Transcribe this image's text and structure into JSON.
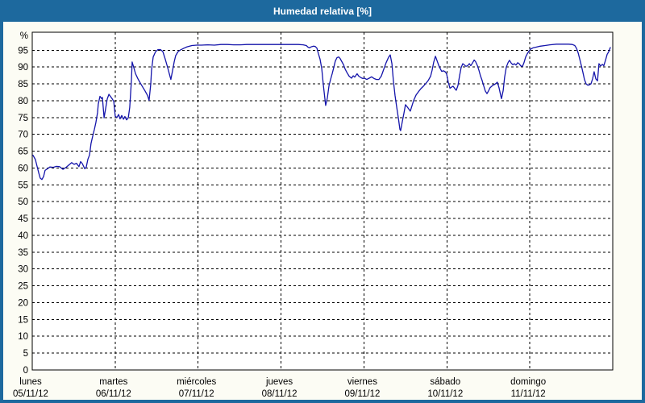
{
  "window": {
    "title": "Humedad relativa [%]",
    "title_bar_color": "#1d699e",
    "content_background": "#fcfcf4",
    "plot_background": "#ffffff"
  },
  "chart_data": {
    "type": "line",
    "title": "Humedad relativa [%]",
    "ylabel": "%",
    "ylim": [
      0,
      100
    ],
    "y_tick_step": 5,
    "y_tick_min": 0,
    "y_tick_max": 95,
    "grid": true,
    "grid_style": "dashed",
    "legend_position": "none",
    "line_color": "#1414aa",
    "x_unit": "hours since lunes 05/11/12 00:00",
    "x_range_hours": [
      0,
      168
    ],
    "x_axis_days": [
      {
        "name": "lunes",
        "date": "05/11/12"
      },
      {
        "name": "martes",
        "date": "06/11/12"
      },
      {
        "name": "miércoles",
        "date": "07/11/12"
      },
      {
        "name": "jueves",
        "date": "08/11/12"
      },
      {
        "name": "viernes",
        "date": "09/11/12"
      },
      {
        "name": "sábado",
        "date": "10/11/12"
      },
      {
        "name": "domingo",
        "date": "11/11/12"
      }
    ],
    "series": [
      {
        "name": "Humedad relativa [%]",
        "points": [
          [
            0.2,
            63.8
          ],
          [
            0.9,
            62.5
          ],
          [
            1.4,
            60.5
          ],
          [
            1.9,
            58.5
          ],
          [
            2.3,
            57.0
          ],
          [
            2.8,
            56.6
          ],
          [
            3.3,
            57.5
          ],
          [
            3.7,
            59.3
          ],
          [
            4.4,
            59.8
          ],
          [
            5.1,
            60.3
          ],
          [
            6.1,
            60.2
          ],
          [
            7.0,
            60.5
          ],
          [
            7.9,
            60.4
          ],
          [
            8.9,
            59.6
          ],
          [
            9.8,
            60.2
          ],
          [
            10.7,
            61.0
          ],
          [
            11.4,
            61.6
          ],
          [
            12.1,
            61.1
          ],
          [
            12.8,
            61.4
          ],
          [
            13.5,
            60.4
          ],
          [
            14.0,
            61.9
          ],
          [
            14.5,
            61.3
          ],
          [
            15.2,
            59.8
          ],
          [
            15.6,
            60.2
          ],
          [
            16.1,
            62.6
          ],
          [
            16.6,
            63.9
          ],
          [
            17.0,
            67.3
          ],
          [
            17.5,
            69.5
          ],
          [
            18.0,
            71.5
          ],
          [
            18.4,
            73.5
          ],
          [
            18.9,
            76.5
          ],
          [
            19.1,
            79.0
          ],
          [
            19.6,
            81.3
          ],
          [
            20.1,
            80.6
          ],
          [
            20.3,
            81.0
          ],
          [
            20.8,
            74.9
          ],
          [
            21.2,
            77.5
          ],
          [
            21.7,
            80.5
          ],
          [
            22.2,
            81.9
          ],
          [
            22.6,
            81.3
          ],
          [
            23.1,
            80.6
          ],
          [
            23.6,
            79.8
          ],
          [
            24.0,
            75.4
          ],
          [
            24.5,
            75.0
          ],
          [
            25.0,
            75.9
          ],
          [
            25.4,
            74.6
          ],
          [
            25.9,
            75.6
          ],
          [
            26.4,
            74.5
          ],
          [
            26.8,
            75.3
          ],
          [
            27.3,
            74.3
          ],
          [
            27.8,
            74.9
          ],
          [
            28.2,
            78.0
          ],
          [
            28.7,
            86.0
          ],
          [
            28.9,
            91.5
          ],
          [
            29.4,
            89.8
          ],
          [
            29.9,
            88.0
          ],
          [
            30.6,
            86.5
          ],
          [
            31.3,
            85.2
          ],
          [
            32.0,
            84.0
          ],
          [
            32.7,
            82.8
          ],
          [
            33.4,
            81.5
          ],
          [
            33.8,
            80.1
          ],
          [
            34.3,
            85.0
          ],
          [
            34.5,
            89.0
          ],
          [
            35.0,
            93.0
          ],
          [
            35.7,
            94.6
          ],
          [
            36.4,
            95.2
          ],
          [
            37.1,
            95.2
          ],
          [
            37.8,
            94.6
          ],
          [
            38.5,
            92.3
          ],
          [
            39.2,
            89.8
          ],
          [
            39.7,
            87.9
          ],
          [
            40.1,
            86.3
          ],
          [
            40.6,
            88.9
          ],
          [
            41.1,
            91.6
          ],
          [
            41.5,
            93.4
          ],
          [
            42.2,
            94.6
          ],
          [
            42.9,
            95.1
          ],
          [
            43.9,
            95.6
          ],
          [
            44.8,
            96.0
          ],
          [
            46.2,
            96.4
          ],
          [
            47.6,
            96.5
          ],
          [
            49.0,
            96.5
          ],
          [
            50.9,
            96.6
          ],
          [
            52.7,
            96.5
          ],
          [
            54.6,
            96.7
          ],
          [
            56.5,
            96.7
          ],
          [
            58.3,
            96.6
          ],
          [
            60.2,
            96.6
          ],
          [
            62.1,
            96.7
          ],
          [
            63.9,
            96.7
          ],
          [
            65.8,
            96.7
          ],
          [
            67.7,
            96.7
          ],
          [
            69.5,
            96.7
          ],
          [
            71.4,
            96.7
          ],
          [
            73.3,
            96.7
          ],
          [
            75.1,
            96.7
          ],
          [
            77.0,
            96.7
          ],
          [
            78.4,
            96.6
          ],
          [
            79.3,
            96.4
          ],
          [
            79.8,
            95.9
          ],
          [
            80.3,
            95.7
          ],
          [
            80.7,
            96.0
          ],
          [
            81.4,
            96.2
          ],
          [
            81.9,
            96.1
          ],
          [
            82.4,
            95.6
          ],
          [
            82.8,
            94.0
          ],
          [
            83.3,
            92.3
          ],
          [
            83.8,
            89.5
          ],
          [
            84.2,
            85.0
          ],
          [
            84.7,
            80.5
          ],
          [
            84.9,
            78.6
          ],
          [
            85.4,
            80.8
          ],
          [
            85.9,
            84.5
          ],
          [
            86.3,
            86.2
          ],
          [
            86.8,
            88.0
          ],
          [
            87.3,
            90.0
          ],
          [
            87.7,
            91.8
          ],
          [
            88.2,
            92.8
          ],
          [
            88.7,
            93.0
          ],
          [
            89.1,
            92.5
          ],
          [
            89.6,
            91.6
          ],
          [
            90.1,
            90.7
          ],
          [
            90.5,
            89.5
          ],
          [
            91.0,
            88.5
          ],
          [
            91.7,
            87.3
          ],
          [
            92.4,
            86.7
          ],
          [
            92.9,
            87.4
          ],
          [
            93.3,
            87.0
          ],
          [
            94.0,
            88.0
          ],
          [
            94.5,
            87.3
          ],
          [
            95.2,
            86.8
          ],
          [
            95.7,
            86.6
          ],
          [
            96.1,
            86.7
          ],
          [
            96.8,
            86.3
          ],
          [
            97.5,
            86.7
          ],
          [
            98.2,
            87.1
          ],
          [
            98.9,
            86.6
          ],
          [
            99.6,
            86.3
          ],
          [
            100.3,
            86.3
          ],
          [
            101.0,
            87.3
          ],
          [
            101.7,
            89.3
          ],
          [
            102.4,
            91.3
          ],
          [
            103.1,
            92.9
          ],
          [
            103.6,
            93.6
          ],
          [
            104.1,
            91.0
          ],
          [
            104.5,
            86.0
          ],
          [
            105.0,
            81.5
          ],
          [
            105.5,
            78.0
          ],
          [
            106.0,
            74.5
          ],
          [
            106.4,
            71.5
          ],
          [
            106.6,
            71.1
          ],
          [
            107.1,
            73.8
          ],
          [
            107.6,
            76.4
          ],
          [
            108.0,
            78.8
          ],
          [
            108.5,
            78.2
          ],
          [
            109.0,
            77.5
          ],
          [
            109.4,
            76.9
          ],
          [
            109.9,
            78.5
          ],
          [
            110.4,
            80.1
          ],
          [
            111.1,
            81.7
          ],
          [
            111.8,
            82.7
          ],
          [
            112.5,
            83.6
          ],
          [
            113.2,
            84.3
          ],
          [
            113.9,
            85.1
          ],
          [
            114.6,
            86.0
          ],
          [
            115.3,
            87.3
          ],
          [
            115.7,
            89.0
          ],
          [
            116.2,
            91.5
          ],
          [
            116.7,
            93.2
          ],
          [
            117.1,
            92.0
          ],
          [
            117.6,
            90.6
          ],
          [
            118.1,
            89.5
          ],
          [
            118.5,
            88.7
          ],
          [
            119.0,
            88.9
          ],
          [
            119.5,
            88.6
          ],
          [
            119.9,
            88.0
          ],
          [
            120.4,
            85.5
          ],
          [
            120.9,
            83.7
          ],
          [
            121.3,
            84.0
          ],
          [
            121.8,
            84.3
          ],
          [
            122.3,
            83.6
          ],
          [
            122.7,
            83.1
          ],
          [
            123.2,
            84.5
          ],
          [
            123.7,
            87.5
          ],
          [
            124.1,
            89.8
          ],
          [
            124.6,
            91.0
          ],
          [
            125.1,
            90.6
          ],
          [
            125.5,
            90.2
          ],
          [
            126.0,
            90.4
          ],
          [
            126.5,
            91.0
          ],
          [
            126.9,
            90.4
          ],
          [
            127.4,
            91.2
          ],
          [
            127.9,
            92.1
          ],
          [
            128.3,
            91.6
          ],
          [
            128.8,
            90.5
          ],
          [
            129.3,
            89.0
          ],
          [
            129.7,
            87.4
          ],
          [
            130.2,
            86.0
          ],
          [
            130.7,
            84.3
          ],
          [
            131.1,
            82.9
          ],
          [
            131.6,
            82.1
          ],
          [
            132.1,
            83.0
          ],
          [
            132.5,
            83.9
          ],
          [
            133.2,
            84.5
          ],
          [
            133.9,
            84.9
          ],
          [
            134.6,
            85.5
          ],
          [
            135.1,
            83.8
          ],
          [
            135.6,
            81.5
          ],
          [
            135.8,
            80.6
          ],
          [
            136.3,
            83.0
          ],
          [
            136.7,
            87.0
          ],
          [
            137.2,
            90.0
          ],
          [
            137.7,
            91.3
          ],
          [
            138.1,
            92.0
          ],
          [
            138.6,
            91.2
          ],
          [
            139.1,
            90.7
          ],
          [
            139.5,
            91.0
          ],
          [
            140.0,
            90.6
          ],
          [
            140.5,
            91.3
          ],
          [
            140.9,
            91.0
          ],
          [
            141.4,
            90.3
          ],
          [
            141.9,
            90.2
          ],
          [
            142.3,
            91.3
          ],
          [
            142.8,
            93.0
          ],
          [
            143.3,
            94.0
          ],
          [
            143.7,
            94.7
          ],
          [
            144.2,
            95.3
          ],
          [
            144.9,
            95.7
          ],
          [
            145.8,
            95.9
          ],
          [
            147.0,
            96.2
          ],
          [
            148.4,
            96.4
          ],
          [
            149.8,
            96.6
          ],
          [
            151.7,
            96.8
          ],
          [
            153.5,
            96.8
          ],
          [
            155.2,
            96.8
          ],
          [
            156.3,
            96.7
          ],
          [
            157.0,
            96.4
          ],
          [
            157.5,
            95.6
          ],
          [
            158.0,
            94.2
          ],
          [
            158.4,
            92.5
          ],
          [
            158.9,
            90.5
          ],
          [
            159.4,
            88.3
          ],
          [
            159.8,
            86.3
          ],
          [
            160.3,
            85.0
          ],
          [
            160.8,
            84.6
          ],
          [
            161.2,
            84.7
          ],
          [
            161.7,
            85.0
          ],
          [
            162.2,
            86.6
          ],
          [
            162.6,
            88.6
          ],
          [
            163.1,
            86.5
          ],
          [
            163.6,
            85.9
          ],
          [
            164.0,
            91.0
          ],
          [
            164.5,
            90.3
          ],
          [
            165.0,
            90.8
          ],
          [
            165.4,
            90.4
          ],
          [
            165.9,
            92.0
          ],
          [
            166.4,
            93.8
          ],
          [
            166.8,
            94.5
          ],
          [
            167.3,
            95.8
          ]
        ]
      }
    ]
  }
}
